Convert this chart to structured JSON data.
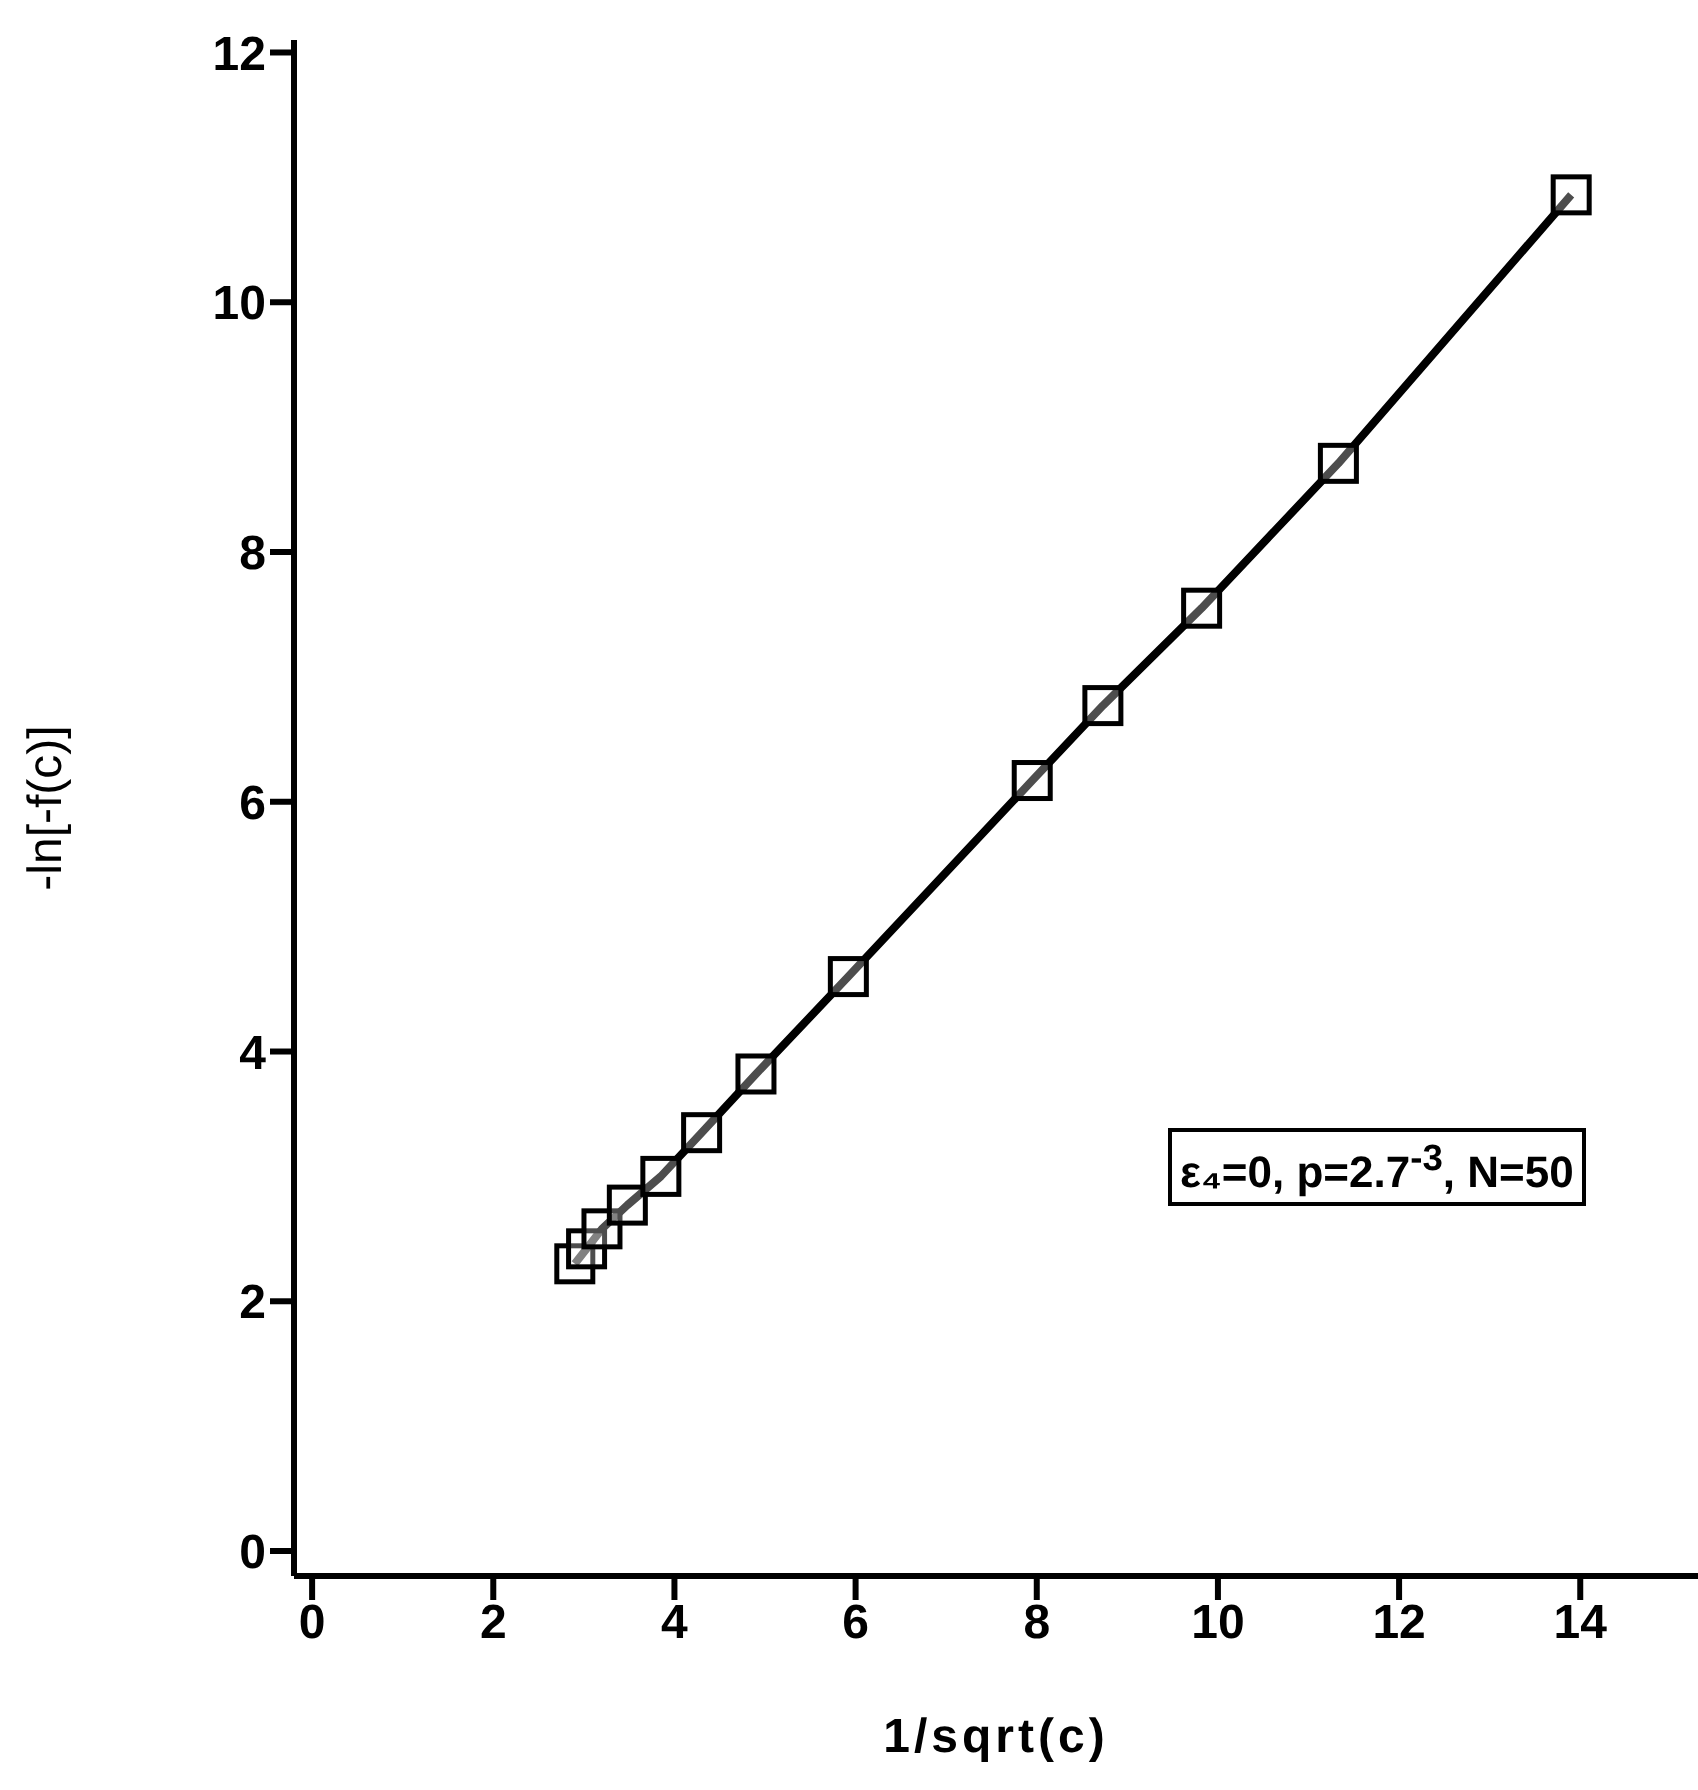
{
  "chart_data": {
    "type": "line",
    "xlabel": "1/sqrt(c)",
    "ylabel": "-ln[-f(c)]",
    "x": [
      2.9,
      3.03,
      3.2,
      3.48,
      3.85,
      4.3,
      4.9,
      5.92,
      7.95,
      8.73,
      9.82,
      11.33,
      13.9
    ],
    "series": [
      {
        "color": "#000000",
        "values": [
          2.3,
          2.42,
          2.58,
          2.77,
          3.0,
          3.35,
          3.82,
          4.6,
          6.17,
          6.77,
          7.55,
          8.71,
          10.86
        ]
      }
    ],
    "xlim": [
      -0.2,
      15.3
    ],
    "xticks": [
      0,
      2,
      4,
      6,
      8,
      10,
      12,
      14
    ],
    "ylim": [
      -0.2,
      12.1
    ],
    "yticks": [
      0,
      2,
      4,
      6,
      8,
      10,
      12
    ],
    "marker": "square",
    "line_style": "solid",
    "grid": false,
    "annotations": [
      "ε₄=0, p=2.7$^{-3}$, N=50"
    ]
  }
}
